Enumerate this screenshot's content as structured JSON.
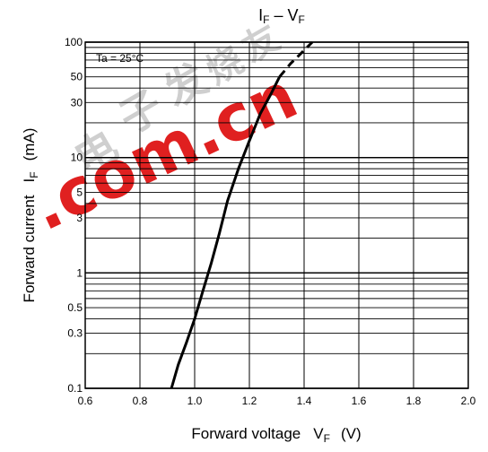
{
  "chart_data": {
    "type": "line",
    "title_main": "I",
    "title_sub": "F",
    "title_mid": " – V",
    "title_sub2": "F",
    "condition": "Ta = 25°C",
    "xlabel": "Forward voltage",
    "xlabel_sym": "V",
    "xlabel_sub": "F",
    "xlabel_unit": "(V)",
    "ylabel": "Forward current",
    "ylabel_sym": "I",
    "ylabel_sub": "F",
    "ylabel_unit": "(mA)",
    "xlim": [
      0.6,
      2.0
    ],
    "ylim": [
      0.1,
      100
    ],
    "yscale": "log",
    "xtick_labels": [
      "0.6",
      "0.8",
      "1.0",
      "1.2",
      "1.4",
      "1.6",
      "1.8",
      "2.0"
    ],
    "xticks": [
      0.6,
      0.8,
      1.0,
      1.2,
      1.4,
      1.6,
      1.8,
      2.0
    ],
    "ytick_labels": [
      "0.1",
      "0.3",
      "0.5",
      "1",
      "3",
      "5",
      "10",
      "30",
      "50",
      "100"
    ],
    "yticks": [
      0.1,
      0.3,
      0.5,
      1,
      3,
      5,
      10,
      30,
      50,
      100
    ],
    "grid": true,
    "series": [
      {
        "style": "solid",
        "color": "#000000",
        "x": [
          0.915,
          0.94,
          0.97,
          1.0,
          1.03,
          1.06,
          1.09,
          1.12,
          1.16,
          1.2,
          1.24,
          1.28,
          1.31
        ],
        "y": [
          0.1,
          0.16,
          0.25,
          0.4,
          0.7,
          1.2,
          2.2,
          4.2,
          8,
          14,
          24,
          36,
          50
        ]
      },
      {
        "style": "dashed",
        "color": "#000000",
        "x": [
          1.31,
          1.35,
          1.4,
          1.43
        ],
        "y": [
          50,
          65,
          85,
          100
        ]
      }
    ]
  },
  "watermark": {
    "text": ".com.cn",
    "color": "#e02020",
    "chars": [
      "电",
      "子",
      "发",
      "烧",
      "友"
    ],
    "chars_color": "#c8c8c8"
  }
}
